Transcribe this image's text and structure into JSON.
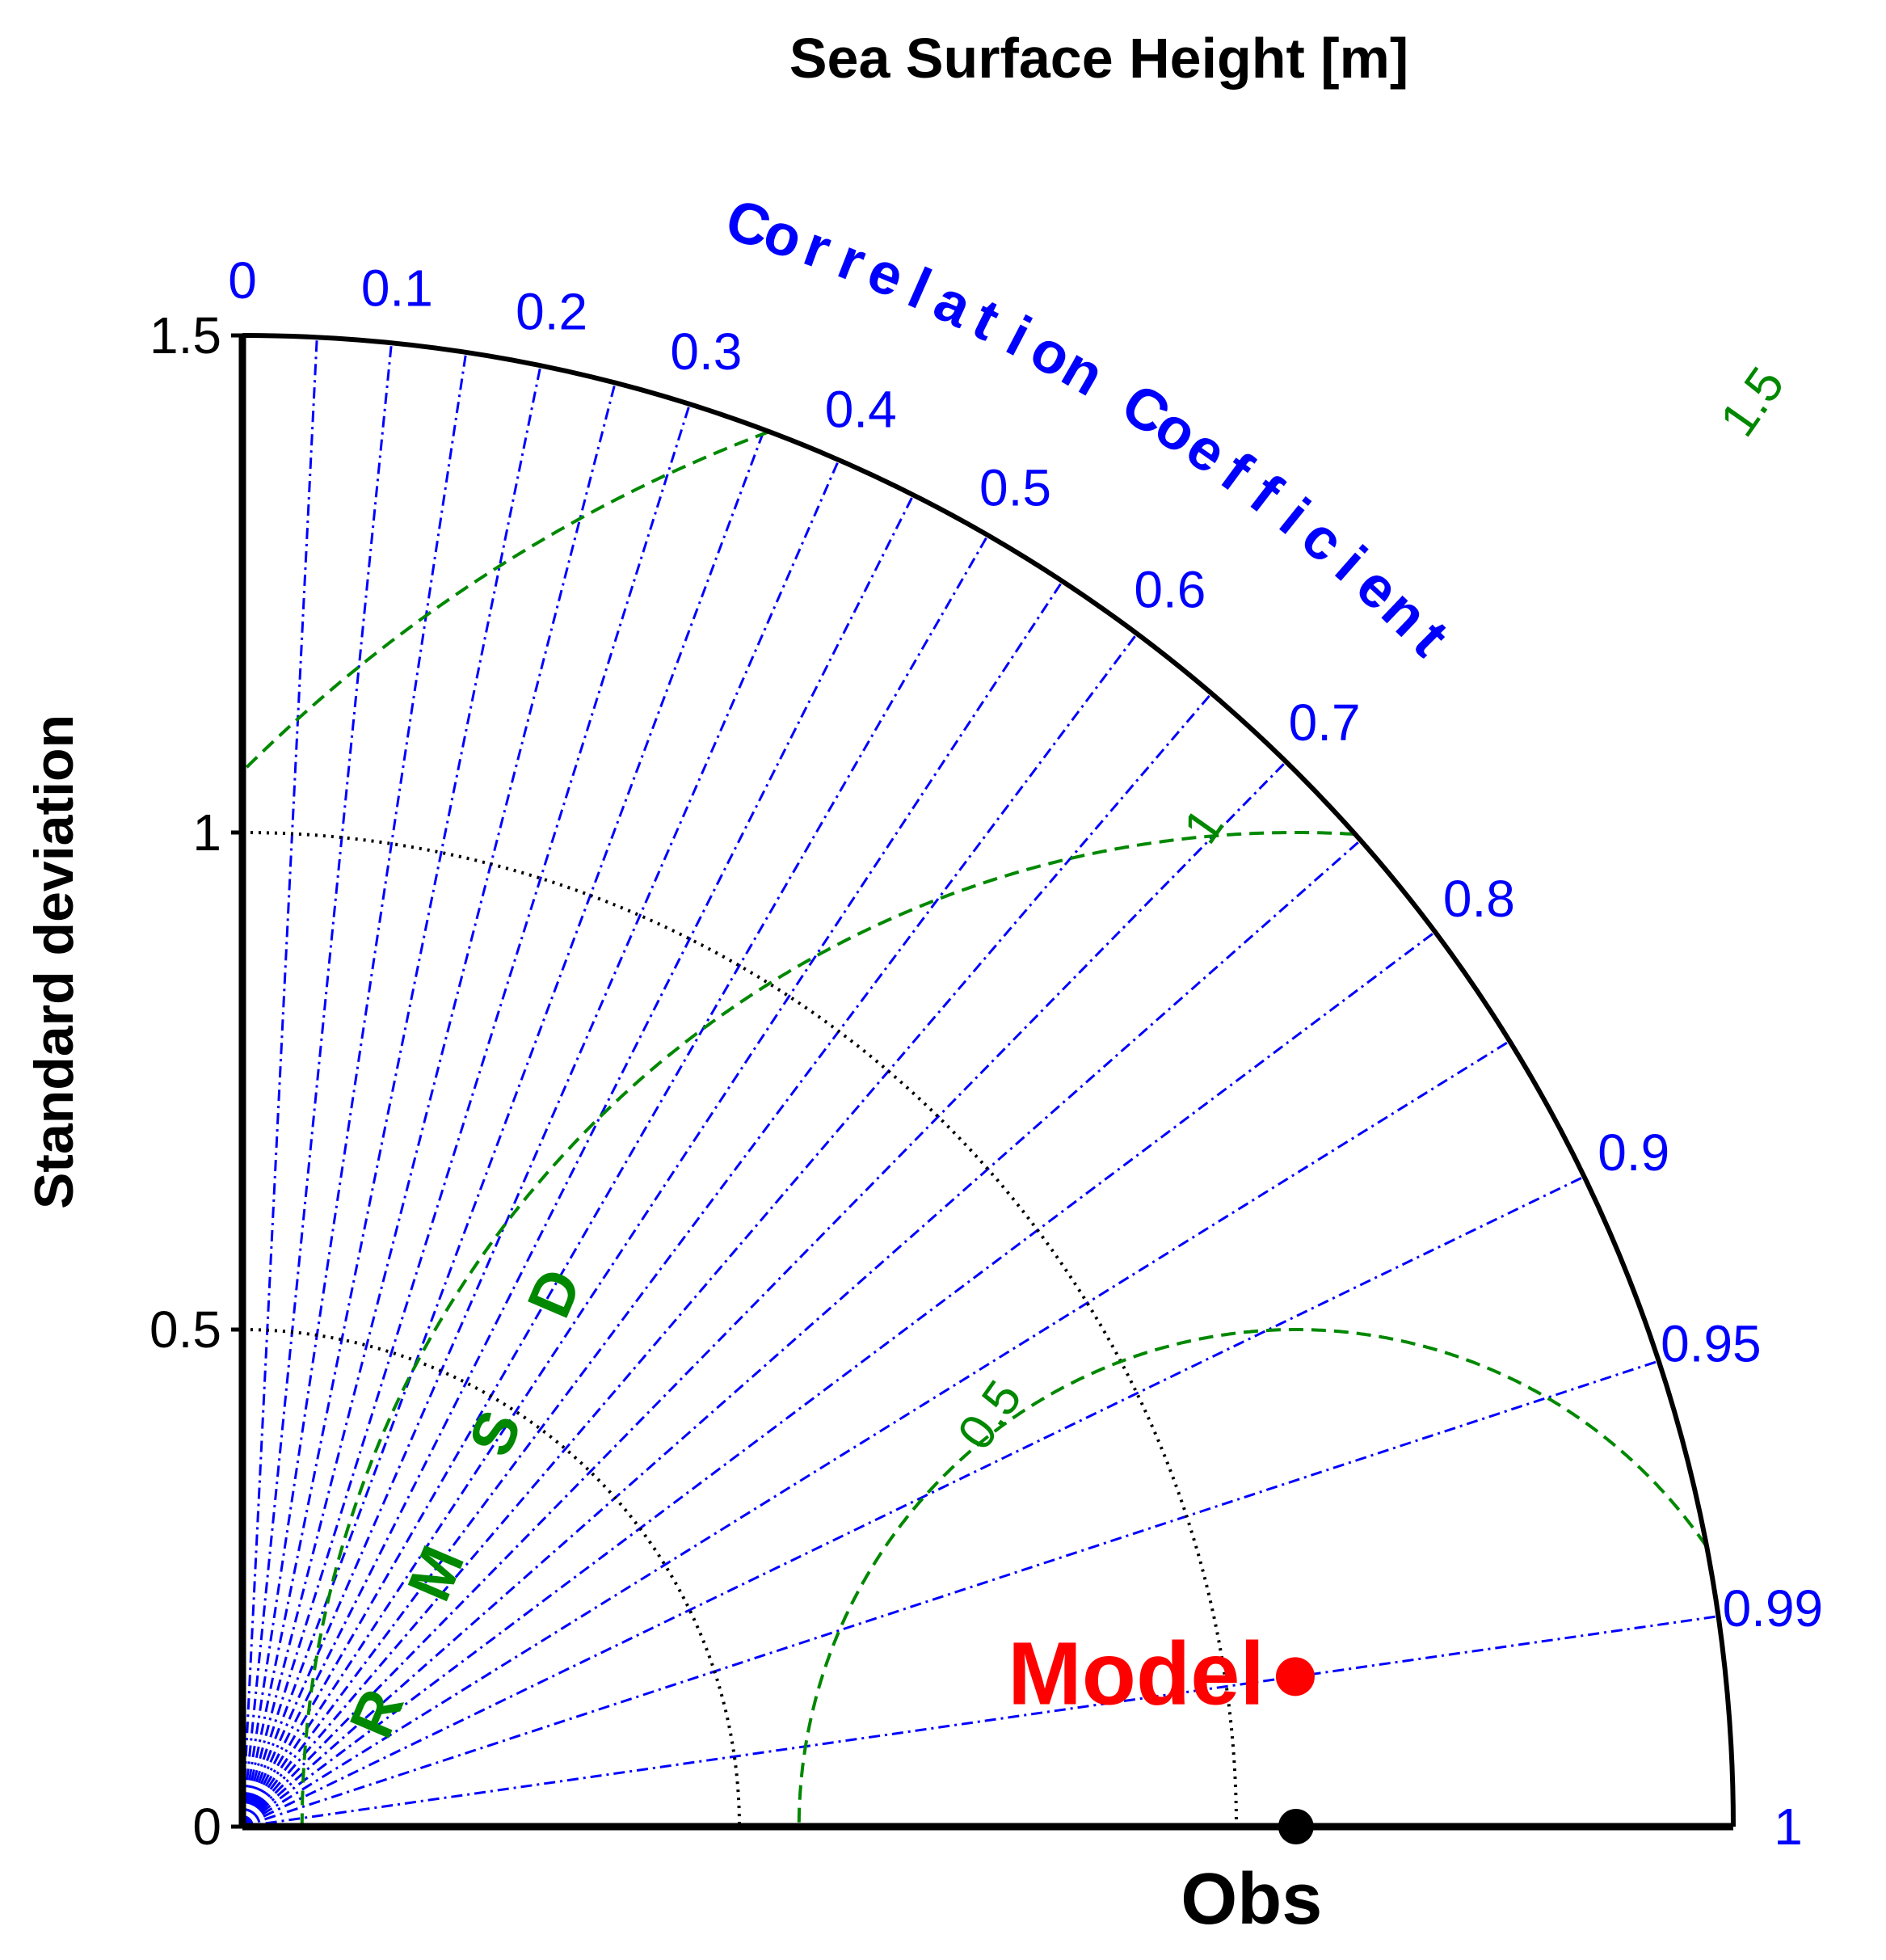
{
  "chart_data": {
    "type": "taylor",
    "title": "Sea Surface Height [m]",
    "ylabel": "Standard deviation",
    "std_ticks": [
      "0",
      "0.5",
      "1",
      "1.5"
    ],
    "std_tick_values": [
      0,
      0.5,
      1,
      1.5
    ],
    "std_max": 1.5,
    "std_circles": [
      0.5,
      1.0
    ],
    "corr_title": "Correlation Coefficient",
    "corr_ticks": [
      "0",
      "0.1",
      "0.2",
      "0.3",
      "0.4",
      "0.5",
      "0.6",
      "0.7",
      "0.8",
      "0.9",
      "0.95",
      "0.99",
      "1"
    ],
    "corr_tick_values": [
      0,
      0.1,
      0.2,
      0.3,
      0.4,
      0.5,
      0.6,
      0.7,
      0.8,
      0.9,
      0.95,
      0.99,
      1
    ],
    "rmsd_title": "RMSD",
    "rmsd_contours": [
      "0.5",
      "1",
      "1.5"
    ],
    "rmsd_values": [
      0.5,
      1.0,
      1.5
    ],
    "obs": {
      "label": "Obs",
      "std": 1.06
    },
    "points": [
      {
        "label": "Model",
        "std": 1.07,
        "corr": 0.99
      }
    ],
    "colors": {
      "correlation": "#0000ff",
      "rmsd": "#008800",
      "std_circle": "#000000",
      "model": "#ff0000",
      "obs": "#000000"
    }
  }
}
